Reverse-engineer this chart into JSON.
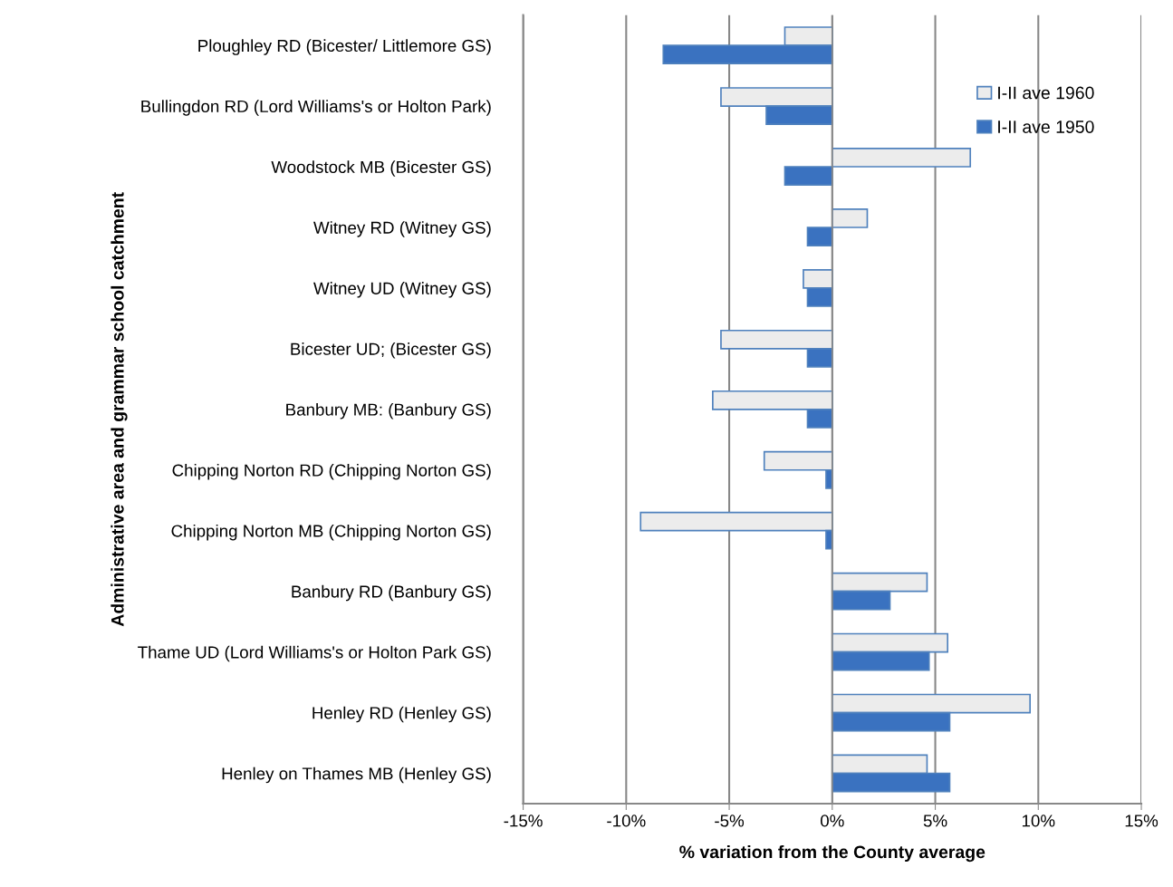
{
  "chart_data": {
    "type": "bar",
    "orientation": "horizontal",
    "xlabel": "% variation from the County average",
    "ylabel": "Administrative area and grammar school catchment",
    "categories": [
      "Ploughley RD (Bicester/ Littlemore GS)",
      "Bullingdon RD (Lord Williams's or Holton Park)",
      "Woodstock MB (Bicester GS)",
      "Witney RD (Witney GS)",
      "Witney UD (Witney GS)",
      "Bicester UD; (Bicester GS)",
      "Banbury MB: (Banbury GS)",
      "Chipping Norton RD (Chipping Norton GS)",
      "Chipping Norton MB (Chipping Norton GS)",
      "Banbury RD (Banbury GS)",
      "Thame UD (Lord Williams's or Holton Park GS)",
      "Henley RD (Henley GS)",
      "Henley on Thames MB (Henley GS)"
    ],
    "series": [
      {
        "name": "I-II ave 1960",
        "color": "#ececec",
        "values": [
          -2.3,
          -5.4,
          6.7,
          1.7,
          -1.4,
          -5.4,
          -5.8,
          -3.3,
          -9.3,
          4.6,
          5.6,
          9.6,
          4.6
        ]
      },
      {
        "name": "I-II ave 1950",
        "color": "#3a72c0",
        "values": [
          -8.2,
          -3.2,
          -2.3,
          -1.2,
          -1.2,
          -1.2,
          -1.2,
          -0.3,
          -0.3,
          2.8,
          4.7,
          5.7,
          5.7
        ]
      }
    ],
    "xlim": [
      -15,
      15
    ],
    "xticks": [
      {
        "value": -15,
        "label": "-15%"
      },
      {
        "value": -10,
        "label": "-10%"
      },
      {
        "value": -5,
        "label": "-5%"
      },
      {
        "value": 0,
        "label": "0%"
      },
      {
        "value": 5,
        "label": "5%"
      },
      {
        "value": 10,
        "label": "10%"
      },
      {
        "value": 15,
        "label": "15%"
      }
    ],
    "grid": "x",
    "legend": "top right"
  }
}
